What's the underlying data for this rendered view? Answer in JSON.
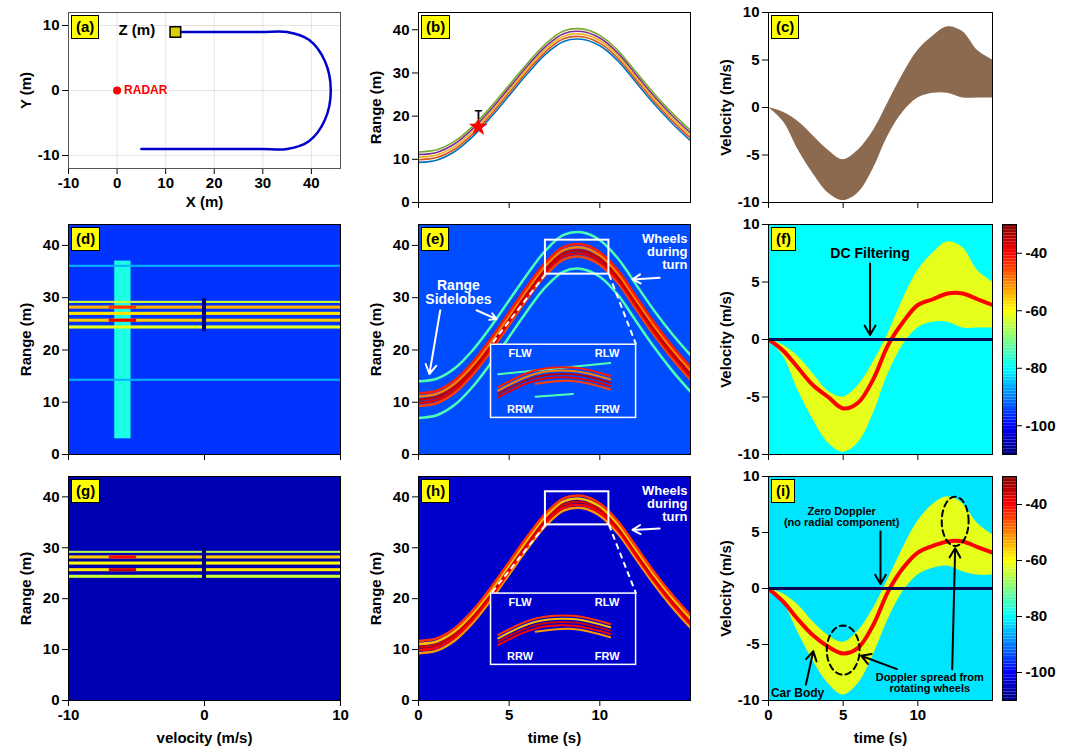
{
  "chart_data": [
    {
      "panel": "(a)",
      "type": "line",
      "x": [
        5,
        10,
        15,
        20,
        25,
        30,
        35,
        39.5,
        42.8,
        44,
        42.8,
        39.5,
        35,
        30,
        25,
        20,
        15,
        12
      ],
      "y": [
        -9,
        -9,
        -9,
        -9,
        -9,
        -9,
        -9,
        -7.8,
        -4.5,
        0,
        4.5,
        7.8,
        9,
        9,
        9,
        9,
        9,
        9
      ],
      "color": "#0000cc",
      "radar": {
        "x": 0,
        "y": 0,
        "label": "RADAR",
        "color": "#ff0000"
      },
      "xlabel": "X (m)",
      "ylabel": "Y (m)",
      "zlabel": "Z (m)",
      "xlim": [
        -10,
        46
      ],
      "ylim": [
        -12,
        12
      ],
      "xticks": [
        -10,
        0,
        10,
        20,
        30,
        40
      ],
      "yticks": [
        -10,
        0,
        10
      ],
      "grid": true
    },
    {
      "panel": "(b)",
      "type": "line",
      "x": [
        0,
        1,
        2,
        3,
        4,
        5,
        6,
        7,
        8,
        9,
        10,
        11,
        12,
        13,
        14,
        15
      ],
      "series": [
        {
          "color": "#0072bd",
          "values": [
            9.3,
            9.8,
            11.8,
            15.3,
            19.8,
            24.8,
            29.8,
            34.3,
            37.3,
            37.8,
            36.3,
            32.8,
            27.8,
            22.8,
            18.3,
            14.3
          ]
        },
        {
          "color": "#d95319",
          "values": [
            9.9,
            10.4,
            12.4,
            15.9,
            20.4,
            25.4,
            30.4,
            34.9,
            37.9,
            38.4,
            36.9,
            33.4,
            28.4,
            23.4,
            18.9,
            14.9
          ]
        },
        {
          "color": "#edb120",
          "values": [
            10.5,
            11,
            13,
            16.5,
            21,
            26,
            31,
            35.5,
            38.5,
            39,
            37.5,
            34,
            29,
            24,
            19.5,
            15.5
          ]
        },
        {
          "color": "#7e2f8e",
          "values": [
            11.1,
            11.6,
            13.6,
            17.1,
            21.6,
            26.6,
            31.6,
            36.1,
            39.1,
            39.6,
            38.1,
            34.6,
            29.6,
            24.6,
            20.1,
            16.1
          ]
        },
        {
          "color": "#77ac30",
          "values": [
            11.7,
            12.2,
            14.2,
            17.7,
            22.2,
            27.2,
            32.2,
            36.7,
            39.7,
            40.2,
            38.7,
            35.2,
            30.2,
            25.2,
            20.7,
            16.7
          ]
        }
      ],
      "highlight": {
        "x": 3.3,
        "y": 17.5,
        "text": "T",
        "color": "#ff0000",
        "marker": "star"
      },
      "ylabel": "Range (m)",
      "xlim": [
        0,
        15
      ],
      "ylim": [
        0,
        44
      ],
      "xticks": [
        0,
        5,
        10
      ],
      "yticks": [
        0,
        10,
        20,
        30,
        40
      ],
      "tick_labels": "y"
    },
    {
      "panel": "(c)",
      "type": "area",
      "x": [
        0,
        1,
        2,
        3,
        4,
        5,
        6,
        7,
        8,
        9,
        10,
        11,
        12,
        13,
        14,
        15
      ],
      "lo": [
        0,
        -1.5,
        -4.5,
        -7,
        -9,
        -9.8,
        -9,
        -6.5,
        -3,
        -0.5,
        1,
        1.5,
        1.5,
        1,
        1,
        1
      ],
      "hi": [
        0,
        -0.5,
        -1.5,
        -3,
        -4.5,
        -5.5,
        -4.5,
        -2.5,
        0.5,
        3.5,
        6,
        7.5,
        8.5,
        8,
        6,
        5
      ],
      "color": "#8c6a4f",
      "ylabel": "Velocity (m/s)",
      "xlim": [
        0,
        15
      ],
      "ylim": [
        -10,
        10
      ],
      "xticks": [
        0,
        5,
        10
      ],
      "yticks": [
        -10,
        -5,
        0,
        5,
        10
      ],
      "tick_labels": "y"
    },
    {
      "panel": "(d)",
      "type": "heatmap",
      "cells": [
        {
          "x1": -10,
          "x2": 10,
          "y1": 0,
          "y2": 44,
          "value": -96
        },
        {
          "x1": -6.6,
          "x2": -5.4,
          "y1": 3,
          "y2": 37,
          "value": -78
        },
        {
          "x1": -10,
          "x2": 10,
          "y1": 14,
          "y2": 14.4,
          "value": -86
        },
        {
          "x1": -10,
          "x2": 10,
          "y1": 35.8,
          "y2": 36.2,
          "value": -86
        },
        {
          "x1": -10,
          "x2": 10,
          "y1": 24,
          "y2": 24.6,
          "value": -62
        },
        {
          "x1": -10,
          "x2": 10,
          "y1": 25.3,
          "y2": 25.9,
          "value": -56
        },
        {
          "x1": -10,
          "x2": 10,
          "y1": 26.6,
          "y2": 27.2,
          "value": -58
        },
        {
          "x1": -10,
          "x2": 10,
          "y1": 27.8,
          "y2": 28.4,
          "value": -54
        },
        {
          "x1": -10,
          "x2": 10,
          "y1": 28.9,
          "y2": 29.3,
          "value": -64
        },
        {
          "x1": -7,
          "x2": -5,
          "y1": 25.3,
          "y2": 25.9,
          "value": -38
        },
        {
          "x1": -7,
          "x2": -5,
          "y1": 27.8,
          "y2": 28.4,
          "value": -44
        },
        {
          "x1": -0.15,
          "x2": 0.15,
          "y1": 23.5,
          "y2": 29.8,
          "value": -110
        }
      ],
      "ylabel": "Range (m)",
      "xlim": [
        -10,
        10
      ],
      "ylim": [
        0,
        44
      ],
      "xticks": [
        -10,
        0,
        10
      ],
      "yticks": [
        0,
        10,
        20,
        30,
        40
      ],
      "tick_labels": "y"
    },
    {
      "panel": "(e)",
      "type": "heatmap",
      "x": [
        0,
        1,
        2,
        3,
        4,
        5,
        6,
        7,
        8,
        9,
        10,
        11,
        12,
        13,
        14,
        15
      ],
      "background": -94,
      "tracks": [
        {
          "value": -74,
          "values": [
            7,
            7.5,
            9.5,
            13,
            17.5,
            22.5,
            27.5,
            32,
            35,
            35.5,
            34,
            30.5,
            25.5,
            20.5,
            16,
            12
          ]
        },
        {
          "value": -74,
          "values": [
            14,
            14.5,
            16.5,
            20,
            24.5,
            29.5,
            34.5,
            39,
            42,
            42.5,
            41,
            37.5,
            32.5,
            27.5,
            23,
            19
          ]
        },
        {
          "value": -45,
          "values": [
            9.3,
            9.8,
            11.8,
            15.3,
            19.8,
            24.8,
            29.8,
            34.3,
            37.3,
            37.8,
            36.3,
            32.8,
            27.8,
            22.8,
            18.3,
            14.3
          ]
        },
        {
          "value": -38,
          "values": [
            9.9,
            10.4,
            12.4,
            15.9,
            20.4,
            25.4,
            30.4,
            34.9,
            37.9,
            38.4,
            36.9,
            33.4,
            28.4,
            23.4,
            18.9,
            14.9
          ]
        },
        {
          "value": -35,
          "values": [
            10.5,
            11,
            13,
            16.5,
            21,
            26,
            31,
            35.5,
            38.5,
            39,
            37.5,
            34,
            29,
            24,
            19.5,
            15.5
          ]
        },
        {
          "value": -50,
          "values": [
            11.1,
            11.6,
            13.6,
            17.1,
            21.6,
            26.6,
            31.6,
            36.1,
            39.1,
            39.6,
            38.1,
            34.6,
            29.6,
            24.6,
            20.1,
            16.1
          ]
        },
        {
          "value": -42,
          "values": [
            11.7,
            12.2,
            14.2,
            17.7,
            22.2,
            27.2,
            32.2,
            36.7,
            39.7,
            40.2,
            38.7,
            35.2,
            30.2,
            25.2,
            20.7,
            16.7
          ]
        }
      ],
      "annotations": [
        "Range Sidelobes",
        "Wheels during turn"
      ],
      "inset_labels": [
        "FLW",
        "RLW",
        "RRW",
        "FRW"
      ],
      "ylabel": "Range (m)",
      "xlim": [
        0,
        15
      ],
      "ylim": [
        0,
        44
      ],
      "xticks": [
        0,
        5,
        10
      ],
      "yticks": [
        0,
        10,
        20,
        30,
        40
      ],
      "tick_labels": "y"
    },
    {
      "panel": "(f)",
      "type": "heatmap",
      "x": [
        0,
        1,
        2,
        3,
        4,
        5,
        6,
        7,
        8,
        9,
        10,
        11,
        12,
        13,
        14,
        15
      ],
      "background": -80,
      "band": {
        "value": -62,
        "lo": [
          0,
          -1.5,
          -4.5,
          -7,
          -9,
          -9.8,
          -9,
          -6.5,
          -3,
          -0.5,
          1,
          1.5,
          1.5,
          1,
          1,
          1
        ],
        "hi": [
          0,
          -0.5,
          -1.5,
          -3,
          -4.5,
          -5,
          -4,
          -2,
          0.5,
          3.5,
          6,
          7.5,
          8.5,
          8,
          6,
          5
        ]
      },
      "core": {
        "value": -40,
        "values": [
          0,
          -1,
          -2.5,
          -4,
          -5,
          -6,
          -5.5,
          -3.5,
          -0.5,
          1.5,
          3,
          3.5,
          4,
          4,
          3.5,
          3
        ]
      },
      "zero_line": 0,
      "annotations": [
        "DC Filtering"
      ],
      "colorbar": {
        "lim": [
          -110,
          -30
        ],
        "ticks": [
          -40,
          -60,
          -80,
          -100
        ]
      },
      "ylabel": "Velocity (m/s)",
      "xlim": [
        0,
        15
      ],
      "ylim": [
        -10,
        10
      ],
      "xticks": [
        0,
        5,
        10
      ],
      "yticks": [
        -10,
        -5,
        0,
        5,
        10
      ],
      "tick_labels": "y"
    },
    {
      "panel": "(g)",
      "type": "heatmap",
      "cells": [
        {
          "x1": -10,
          "x2": 10,
          "y1": 0,
          "y2": 44,
          "value": -106
        },
        {
          "x1": -10,
          "x2": 10,
          "y1": 24,
          "y2": 24.6,
          "value": -64
        },
        {
          "x1": -10,
          "x2": 10,
          "y1": 25.3,
          "y2": 25.9,
          "value": -58
        },
        {
          "x1": -10,
          "x2": 10,
          "y1": 26.6,
          "y2": 27.2,
          "value": -60
        },
        {
          "x1": -10,
          "x2": 10,
          "y1": 27.8,
          "y2": 28.4,
          "value": -56
        },
        {
          "x1": -10,
          "x2": 10,
          "y1": 28.9,
          "y2": 29.3,
          "value": -66
        },
        {
          "x1": -7,
          "x2": -5,
          "y1": 25.3,
          "y2": 25.9,
          "value": -36
        },
        {
          "x1": -7,
          "x2": -5,
          "y1": 27.8,
          "y2": 28.4,
          "value": -40
        },
        {
          "x1": -0.15,
          "x2": 0.15,
          "y1": 23.5,
          "y2": 29.8,
          "value": -110
        }
      ],
      "xlabel": "velocity (m/s)",
      "ylabel": "Range (m)",
      "xlim": [
        -10,
        10
      ],
      "ylim": [
        0,
        44
      ],
      "xticks": [
        -10,
        0,
        10
      ],
      "yticks": [
        0,
        10,
        20,
        30,
        40
      ]
    },
    {
      "panel": "(h)",
      "type": "heatmap",
      "x": [
        0,
        1,
        2,
        3,
        4,
        5,
        6,
        7,
        8,
        9,
        10,
        11,
        12,
        13,
        14,
        15
      ],
      "background": -104,
      "tracks": [
        {
          "value": -52,
          "values": [
            9.3,
            9.8,
            11.8,
            15.3,
            19.8,
            24.8,
            29.8,
            34.3,
            37.3,
            37.8,
            36.3,
            32.8,
            27.8,
            22.8,
            18.3,
            14.3
          ]
        },
        {
          "value": -40,
          "values": [
            9.9,
            10.4,
            12.4,
            15.9,
            20.4,
            25.4,
            30.4,
            34.9,
            37.9,
            38.4,
            36.9,
            33.4,
            28.4,
            23.4,
            18.9,
            14.9
          ]
        },
        {
          "value": -36,
          "values": [
            10.5,
            11,
            13,
            16.5,
            21,
            26,
            31,
            35.5,
            38.5,
            39,
            37.5,
            34,
            29,
            24,
            19.5,
            15.5
          ]
        },
        {
          "value": -55,
          "values": [
            11.1,
            11.6,
            13.6,
            17.1,
            21.6,
            26.6,
            31.6,
            36.1,
            39.1,
            39.6,
            38.1,
            34.6,
            29.6,
            24.6,
            20.1,
            16.1
          ]
        },
        {
          "value": -44,
          "values": [
            11.7,
            12.2,
            14.2,
            17.7,
            22.2,
            27.2,
            32.2,
            36.7,
            39.7,
            40.2,
            38.7,
            35.2,
            30.2,
            25.2,
            20.7,
            16.7
          ]
        }
      ],
      "annotations": [
        "Wheels during turn"
      ],
      "inset_labels": [
        "FLW",
        "RLW",
        "RRW",
        "FRW"
      ],
      "xlabel": "time (s)",
      "ylabel": "Range (m)",
      "xlim": [
        0,
        15
      ],
      "ylim": [
        0,
        44
      ],
      "xticks": [
        0,
        5,
        10
      ],
      "yticks": [
        0,
        10,
        20,
        30,
        40
      ]
    },
    {
      "panel": "(i)",
      "type": "heatmap",
      "x": [
        0,
        1,
        2,
        3,
        4,
        5,
        6,
        7,
        8,
        9,
        10,
        11,
        12,
        13,
        14,
        15
      ],
      "background": -82,
      "band": {
        "value": -62,
        "lo": [
          0,
          -1.3,
          -4,
          -6.5,
          -8.5,
          -9.5,
          -8.5,
          -6,
          -2.8,
          -0.3,
          1.2,
          1.8,
          2,
          1.5,
          1.2,
          1.2
        ],
        "hi": [
          0,
          -0.5,
          -1.5,
          -3,
          -4.2,
          -4.8,
          -3.8,
          -1.8,
          0.8,
          3.6,
          6,
          7.5,
          8.2,
          7.6,
          5.8,
          4.8
        ]
      },
      "core": {
        "value": -40,
        "values": [
          0,
          -1.2,
          -2.8,
          -4.2,
          -5.2,
          -5.8,
          -5.3,
          -3.3,
          -0.3,
          1.8,
          3.2,
          3.8,
          4.2,
          4.2,
          3.7,
          3.2
        ]
      },
      "zero_line": 0,
      "annotations": [
        "Zero Doppler (no radial component)",
        "Car Body",
        "Doppler spread from rotating wheels"
      ],
      "colorbar": {
        "lim": [
          -110,
          -30
        ],
        "ticks": [
          -40,
          -60,
          -80,
          -100
        ]
      },
      "xlabel": "time (s)",
      "ylabel": "Velocity (m/s)",
      "xlim": [
        0,
        15
      ],
      "ylim": [
        -10,
        10
      ],
      "xticks": [
        0,
        5,
        10
      ],
      "yticks": [
        -10,
        -5,
        0,
        5,
        10
      ]
    }
  ]
}
